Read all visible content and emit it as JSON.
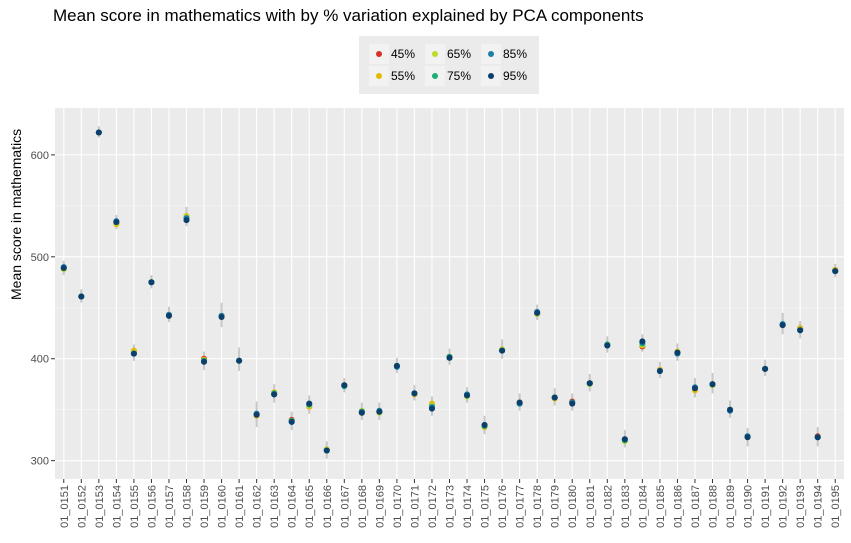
{
  "chart_data": {
    "type": "scatter",
    "title": "Mean score in mathematics with by % variation explained by PCA components",
    "xlabel": "",
    "ylabel": "Mean score in mathematics",
    "yticks": [
      300,
      400,
      500,
      600
    ],
    "ylim": [
      282,
      646
    ],
    "grid": true,
    "legend_position": "top-center",
    "legend": [
      {
        "label": "45%",
        "color": "#d73027"
      },
      {
        "label": "55%",
        "color": "#e6b800"
      },
      {
        "label": "65%",
        "color": "#c2d92c"
      },
      {
        "label": "75%",
        "color": "#1fae74"
      },
      {
        "label": "85%",
        "color": "#1e7fa8"
      },
      {
        "label": "95%",
        "color": "#0b3f6e"
      }
    ],
    "categories": [
      "01_0151",
      "01_0152",
      "01_0153",
      "01_0154",
      "01_0155",
      "01_0156",
      "01_0157",
      "01_0158",
      "01_0159",
      "01_0160",
      "01_0161",
      "01_0162",
      "01_0163",
      "01_0164",
      "01_0165",
      "01_0166",
      "01_0167",
      "01_0168",
      "01_0169",
      "01_0170",
      "01_0171",
      "01_0172",
      "01_0173",
      "01_0174",
      "01_0175",
      "01_0176",
      "01_0177",
      "01_0178",
      "01_0179",
      "01_0180",
      "01_0181",
      "01_0182",
      "01_0183",
      "01_0184",
      "01_0185",
      "01_0186",
      "01_0187",
      "01_0188",
      "01_0189",
      "01_0190",
      "01_0191",
      "01_0192",
      "01_0193",
      "01_0194",
      "01_0195"
    ],
    "series": [
      {
        "name": "45%",
        "values": [
          489,
          461,
          622,
          534,
          407,
          475,
          443,
          539,
          400,
          442,
          398,
          345,
          365,
          340,
          353,
          311,
          374,
          347,
          348,
          393,
          366,
          355,
          401,
          364,
          335,
          409,
          357,
          444,
          362,
          358,
          376,
          414,
          321,
          412,
          389,
          406,
          370,
          375,
          350,
          324,
          390,
          433,
          430,
          324,
          487
        ]
      },
      {
        "name": "55%",
        "values": [
          488,
          461,
          622,
          532,
          408,
          475,
          443,
          540,
          399,
          442,
          398,
          344,
          367,
          339,
          353,
          311,
          374,
          348,
          348,
          393,
          365,
          356,
          402,
          364,
          333,
          409,
          357,
          445,
          361,
          357,
          376,
          414,
          320,
          413,
          389,
          407,
          369,
          375,
          350,
          323,
          390,
          433,
          430,
          323,
          487
        ]
      },
      {
        "name": "65%",
        "values": [
          488,
          461,
          622,
          533,
          406,
          475,
          442,
          539,
          398,
          441,
          398,
          345,
          366,
          339,
          354,
          311,
          374,
          349,
          347,
          393,
          366,
          354,
          401,
          363,
          334,
          409,
          357,
          444,
          362,
          357,
          375,
          413,
          319,
          414,
          388,
          406,
          371,
          374,
          350,
          324,
          390,
          433,
          429,
          323,
          486
        ]
      },
      {
        "name": "75%",
        "values": [
          489,
          461,
          622,
          534,
          405,
          475,
          443,
          538,
          398,
          442,
          398,
          346,
          366,
          339,
          355,
          310,
          373,
          348,
          348,
          393,
          366,
          353,
          402,
          364,
          334,
          408,
          356,
          445,
          362,
          357,
          376,
          414,
          320,
          415,
          388,
          406,
          371,
          375,
          350,
          324,
          390,
          434,
          428,
          323,
          486
        ]
      },
      {
        "name": "85%",
        "values": [
          490,
          461,
          622,
          535,
          405,
          475,
          443,
          538,
          397,
          442,
          398,
          346,
          365,
          338,
          356,
          310,
          374,
          348,
          349,
          392,
          366,
          352,
          401,
          365,
          335,
          408,
          356,
          446,
          362,
          357,
          376,
          413,
          321,
          416,
          388,
          405,
          372,
          375,
          349,
          324,
          390,
          434,
          428,
          323,
          486
        ]
      },
      {
        "name": "95%",
        "values": [
          489,
          461,
          622,
          534,
          405,
          475,
          442,
          536,
          397,
          441,
          398,
          345,
          365,
          338,
          356,
          310,
          374,
          347,
          348,
          393,
          366,
          351,
          401,
          364,
          335,
          408,
          357,
          445,
          362,
          356,
          376,
          413,
          321,
          417,
          388,
          406,
          371,
          375,
          350,
          323,
          390,
          433,
          428,
          323,
          486
        ]
      }
    ],
    "error_bars": {
      "description_hidden": false,
      "lower": [
        482,
        455,
        617,
        527,
        398,
        469,
        436,
        530,
        389,
        431,
        388,
        333,
        357,
        330,
        346,
        302,
        367,
        340,
        340,
        386,
        359,
        344,
        394,
        357,
        326,
        400,
        349,
        438,
        354,
        349,
        368,
        406,
        313,
        407,
        381,
        398,
        362,
        366,
        342,
        314,
        383,
        424,
        420,
        314,
        480
      ],
      "upper": [
        496,
        468,
        628,
        541,
        414,
        482,
        451,
        549,
        407,
        455,
        411,
        358,
        375,
        348,
        364,
        319,
        381,
        357,
        357,
        401,
        374,
        363,
        410,
        372,
        344,
        419,
        366,
        453,
        371,
        366,
        385,
        422,
        330,
        424,
        397,
        415,
        381,
        386,
        359,
        332,
        399,
        445,
        437,
        333,
        493
      ]
    }
  }
}
